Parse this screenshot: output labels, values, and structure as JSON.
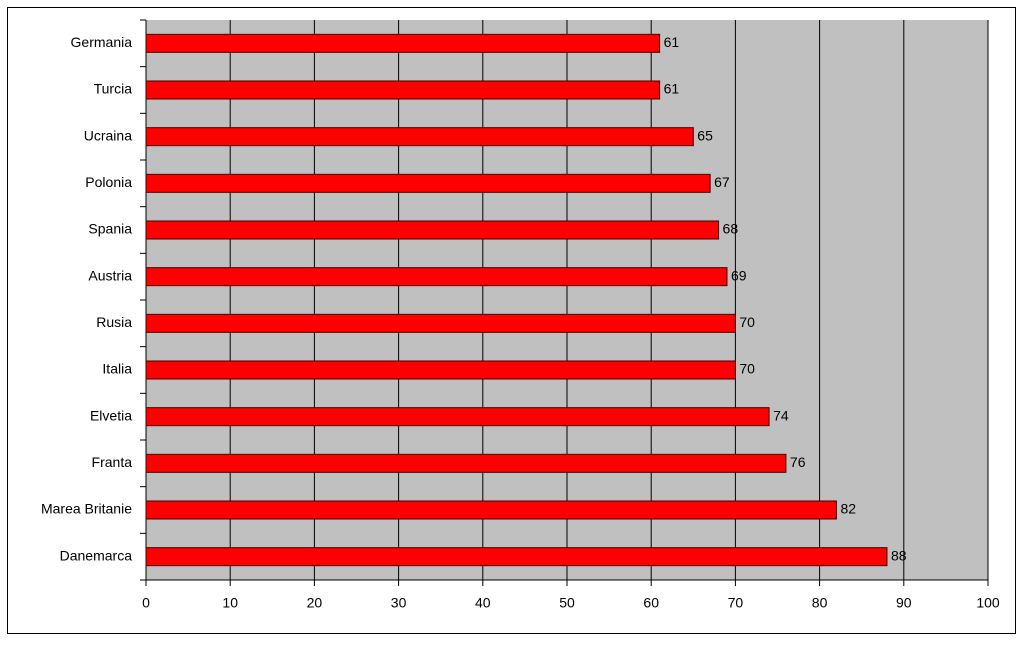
{
  "chart_data": {
    "type": "bar",
    "orientation": "horizontal",
    "categories": [
      "Germania",
      "Turcia",
      "Ucraina",
      "Polonia",
      "Spania",
      "Austria",
      "Rusia",
      "Italia",
      "Elvetia",
      "Franta",
      "Marea Britanie",
      "Danemarca"
    ],
    "values": [
      61,
      61,
      65,
      67,
      68,
      69,
      70,
      70,
      74,
      76,
      82,
      88
    ],
    "color": "#ff0000",
    "xlim": [
      0,
      100
    ],
    "xticks": [
      0,
      10,
      20,
      30,
      40,
      50,
      60,
      70,
      80,
      90,
      100
    ],
    "grid": true
  }
}
